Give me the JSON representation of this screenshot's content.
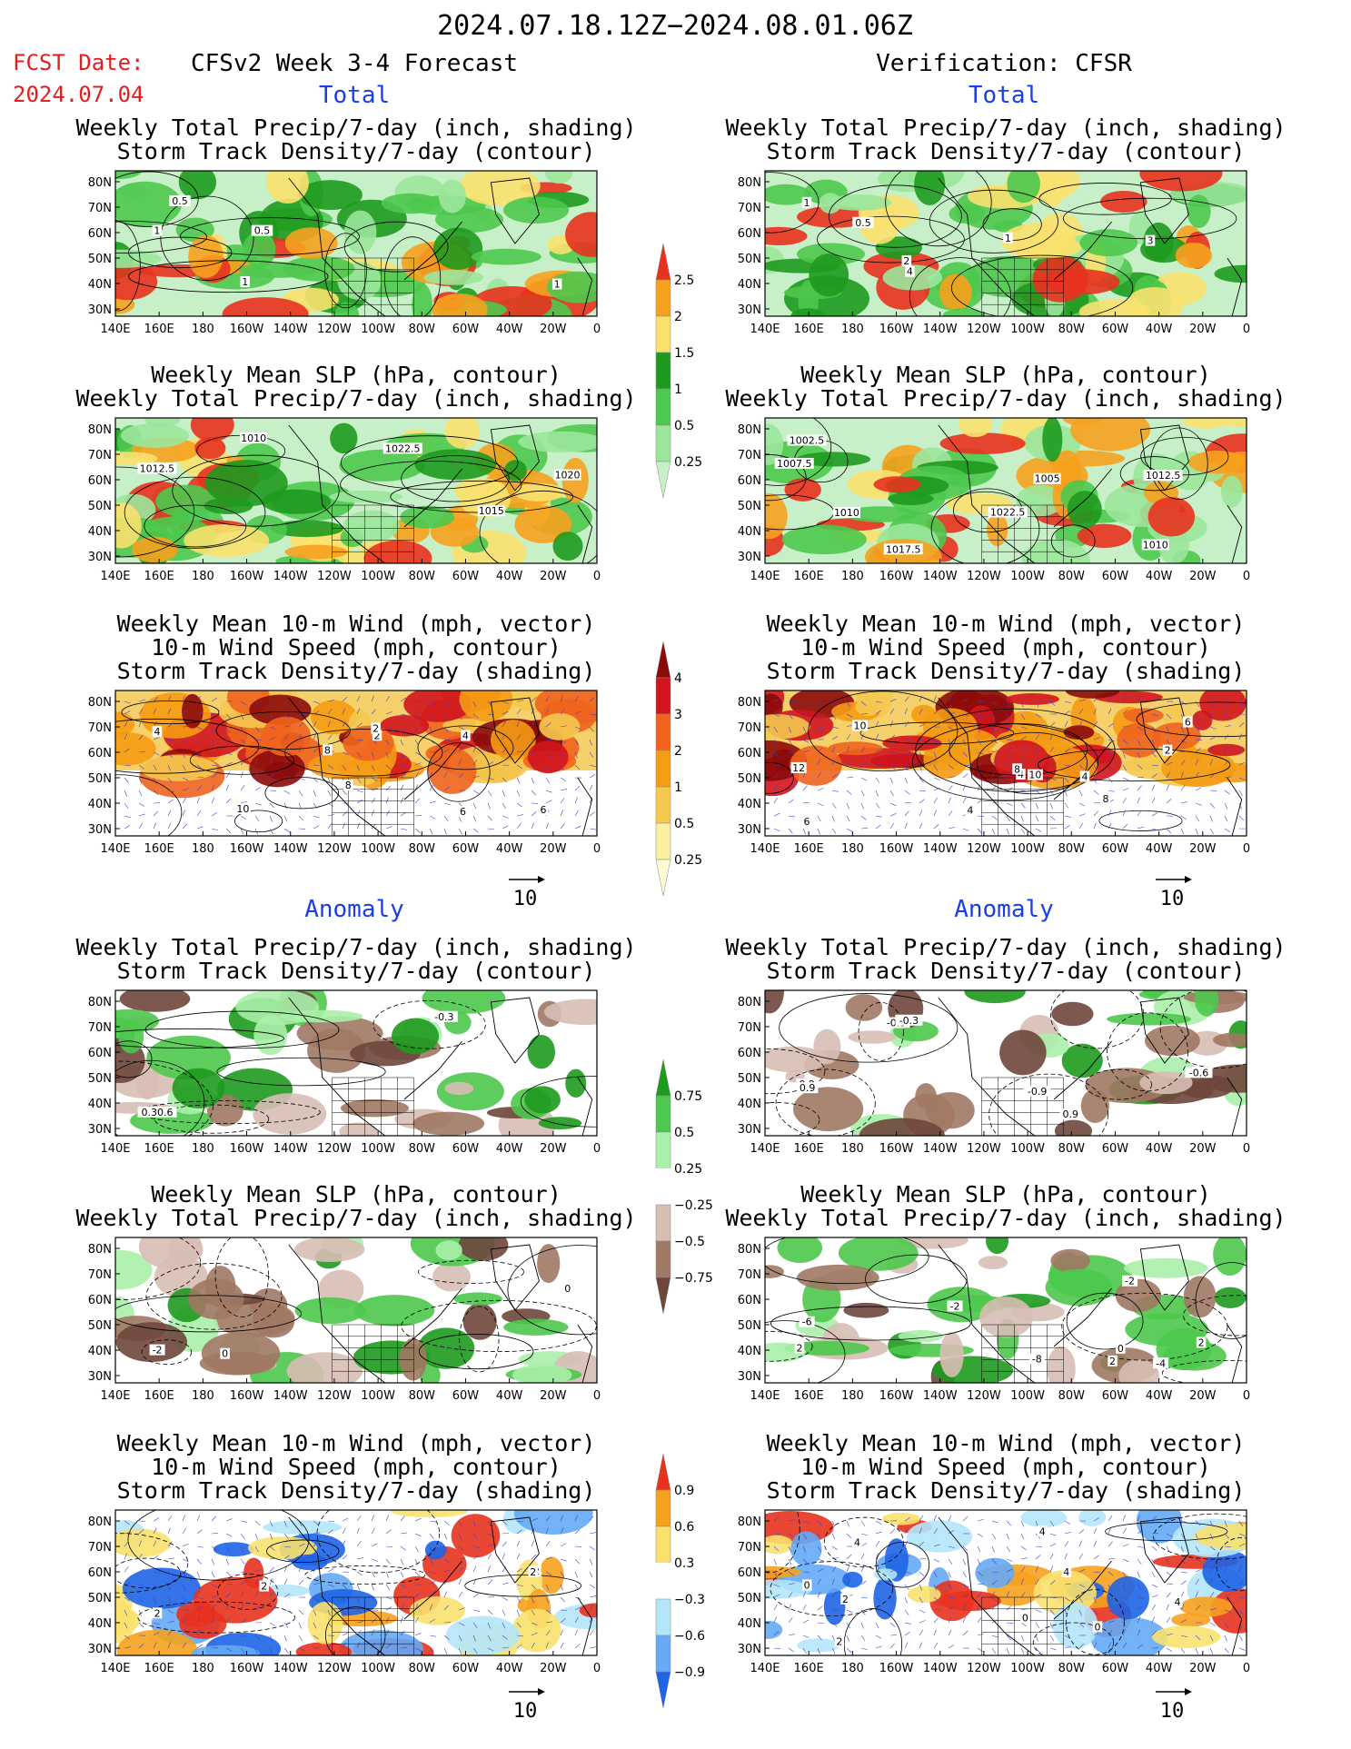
{
  "header": {
    "title": "2024.07.18.12Z−2024.08.01.06Z",
    "fcst_label": "FCST Date:",
    "fcst_date": "2024.07.04",
    "left": "CFSv2 Week 3-4 Forecast",
    "right": "Verification: CFSR"
  },
  "sections": {
    "total": "Total",
    "anomaly": "Anomaly"
  },
  "titles": {
    "precip_storm": [
      "Weekly Total Precip/7-day (inch, shading)",
      "Storm Track Density/7-day (contour)"
    ],
    "slp_precip": [
      "Weekly Mean SLP (hPa, contour)",
      "Weekly Total Precip/7-day (inch, shading)"
    ],
    "wind": [
      "Weekly Mean 10-m Wind (mph, vector)",
      "10-m Wind Speed (mph, contour)",
      "Storm Track Density/7-day (shading)"
    ]
  },
  "axes": {
    "lat_labels": [
      "80N",
      "70N",
      "60N",
      "50N",
      "40N",
      "30N"
    ],
    "lon_labels": [
      "140E",
      "160E",
      "180",
      "160W",
      "140W",
      "120W",
      "100W",
      "80W",
      "60W",
      "40W",
      "20W",
      "0"
    ]
  },
  "colorbars": {
    "precip_total": {
      "labels": [
        "2.5",
        "2",
        "1.5",
        "1",
        "0.5",
        "0.25"
      ],
      "colors": [
        "#e8321e",
        "#f6a11e",
        "#fae16e",
        "#1e9a1e",
        "#4cc84c",
        "#9be69b",
        "#c8f0c8"
      ]
    },
    "storm_total": {
      "labels": [
        "4",
        "3",
        "2",
        "1",
        "0.5",
        "0.25"
      ],
      "colors": [
        "#8c0a0a",
        "#d2141e",
        "#f0641e",
        "#f59b14",
        "#f5c850",
        "#faf0a0",
        "#fffad2"
      ]
    },
    "precip_anom": {
      "labels": [
        "0.75",
        "0.5",
        "0.25",
        "−0.25",
        "−0.5",
        "−0.75"
      ],
      "colors": [
        "#1e9a1e",
        "#4cc84c",
        "#aaf0aa",
        "#ffffff",
        "#d7beb4",
        "#a07864",
        "#6e463c"
      ]
    },
    "storm_anom": {
      "labels": [
        "0.9",
        "0.6",
        "0.3",
        "−0.3",
        "−0.6",
        "−0.9"
      ],
      "colors": [
        "#e8321e",
        "#f6a11e",
        "#fae16e",
        "#ffffff",
        "#b4e6fa",
        "#64aaf5",
        "#1e64e6"
      ]
    }
  },
  "vector_ref": "10",
  "panels": [
    {
      "id": "fc-precip",
      "labels": [
        "1",
        "1",
        "0.5",
        "0.5",
        "1"
      ]
    },
    {
      "id": "fc-slp",
      "labels": [
        "1012.5",
        "1010",
        "1015",
        "1022.5",
        "1020"
      ]
    },
    {
      "id": "fc-wind",
      "labels": [
        "4",
        "2",
        "2",
        "6",
        "6",
        "8",
        "10",
        "4",
        "8"
      ]
    },
    {
      "id": "vr-precip",
      "labels": [
        "1",
        "3",
        "4",
        "2",
        "1",
        "0.5"
      ]
    },
    {
      "id": "vr-slp",
      "labels": [
        "1002.5",
        "1010",
        "1007.5",
        "1005",
        "1017.5",
        "1010",
        "1012.5",
        "1022.5"
      ]
    },
    {
      "id": "vr-wind",
      "labels": [
        "6",
        "4",
        "8",
        "6",
        "12",
        "4",
        "4",
        "2",
        "8",
        "10",
        "10"
      ]
    },
    {
      "id": "fa-precip",
      "labels": [
        "0.30.6",
        "-0.3"
      ]
    },
    {
      "id": "fa-slp",
      "labels": [
        "-2",
        "0",
        "0"
      ]
    },
    {
      "id": "fa-wind",
      "labels": [
        "2",
        "2",
        "2",
        "2"
      ]
    },
    {
      "id": "va-precip",
      "labels": [
        "0.9",
        "-0.9",
        "0.9",
        "-0.9",
        "0.9",
        "-0.3",
        "-0.6"
      ]
    },
    {
      "id": "va-slp",
      "labels": [
        "-6",
        "-4",
        "-2",
        "-8",
        "-2",
        "2",
        "0",
        "2",
        "2"
      ]
    },
    {
      "id": "va-wind",
      "labels": [
        "0",
        "4",
        "2",
        "4",
        "0",
        "4",
        "4",
        "2",
        "0"
      ]
    }
  ]
}
